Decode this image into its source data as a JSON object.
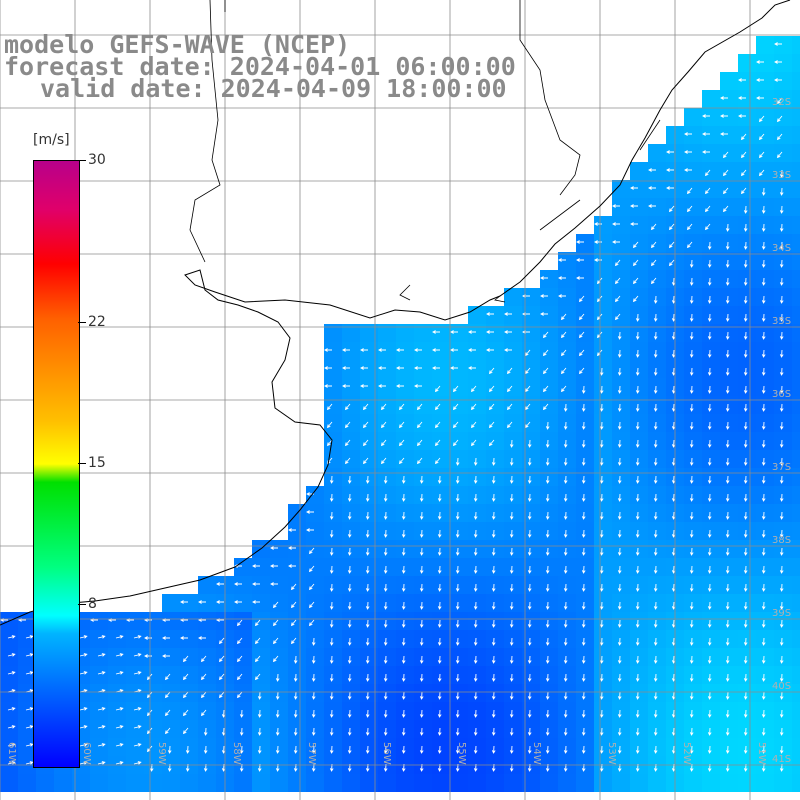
{
  "title": {
    "model": "modelo GEFS-WAVE (NCEP)",
    "forecast": "forecast date: 2024-04-01 06:00:00",
    "valid": "valid date: 2024-04-09 18:00:00"
  },
  "colorbar": {
    "unit": "[m/s]",
    "min": 0,
    "max": 30,
    "ticks": [
      {
        "value": 30,
        "label": "30"
      },
      {
        "value": 22,
        "label": "22"
      },
      {
        "value": 15,
        "label": "15"
      },
      {
        "value": 8,
        "label": "8"
      }
    ]
  },
  "lat_labels": [
    "32S",
    "33S",
    "34S",
    "35S",
    "36S",
    "37S",
    "38S",
    "39S",
    "40S",
    "41S"
  ],
  "lon_labels": [
    "61W",
    "60W",
    "59W",
    "58W",
    "57W",
    "56W",
    "55W",
    "54W",
    "53W",
    "52W",
    "51W"
  ],
  "wind_field": {
    "shown_as": "arrows over colour-shaded wind speed",
    "prevailing_direction": "from north/northeast, turning from east near the coast"
  },
  "colors": {
    "land": "#ffffff",
    "grid": "#8c8c8c",
    "title_text": "#8a8a8a",
    "arrow": "#ffffff"
  }
}
